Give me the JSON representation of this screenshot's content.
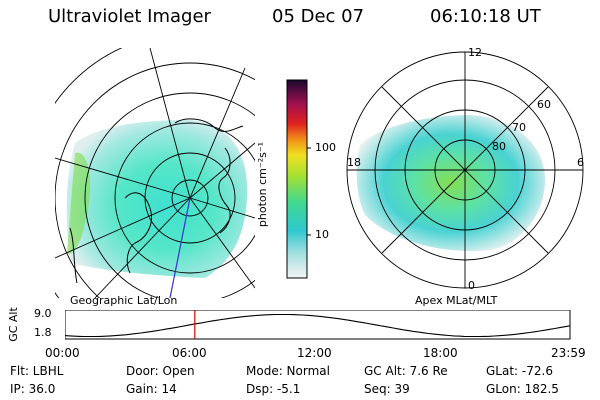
{
  "header": {
    "instrument": "Ultraviolet Imager",
    "date": "05 Dec 07",
    "time": "06:10:18 UT"
  },
  "colorbar": {
    "label": "photon cm⁻²s⁻¹",
    "ticks": [
      "100",
      "10"
    ]
  },
  "geo_panel": {
    "caption": "Geographic Lat/Lon"
  },
  "polar_panel": {
    "caption": "Apex MLat/MLT",
    "mlt_labels": {
      "top": "12",
      "left": "18",
      "right": "6",
      "bottom": "0"
    },
    "lat_labels": [
      "60",
      "70",
      "80"
    ]
  },
  "altitude_strip": {
    "axis_label": "GC Alt",
    "y_ticks": [
      "9.0",
      "1.8"
    ],
    "x_ticks": [
      "00:00",
      "06:00",
      "12:00",
      "18:00",
      "23:59"
    ],
    "marker_time_hours": 6.17
  },
  "status": {
    "flt": "Flt: LBHL",
    "ip": "IP: 36.0",
    "door": "Door: Open",
    "gain": "Gain: 14",
    "mode": "Mode: Normal",
    "dsp": "Dsp:   -5.1",
    "gc_alt": "GC Alt: 7.6 Re",
    "seq": "Seq: 39",
    "glat": "GLat: -72.6",
    "glon": "GLon: 182.5"
  },
  "colors": {
    "marker": "#dd0000",
    "trace": "#000000"
  }
}
